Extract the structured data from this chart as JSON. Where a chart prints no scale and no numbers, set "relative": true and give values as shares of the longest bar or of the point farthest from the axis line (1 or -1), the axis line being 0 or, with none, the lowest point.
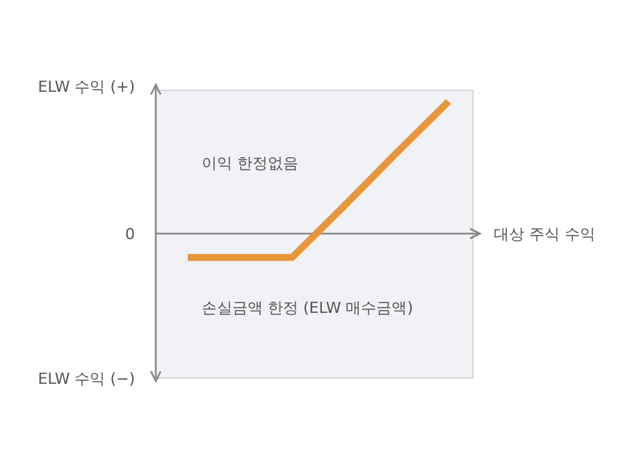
{
  "chart_data": {
    "type": "line",
    "relative": true,
    "categories": [
      null,
      null,
      null,
      null,
      null,
      null
    ],
    "values": [
      -0.18,
      -0.18,
      -0.18,
      0.21,
      0.61,
      1
    ],
    "color": "#e8963a",
    "xlabel": "대상 주식 수익",
    "annotations": [
      "ELW 수익 (+)",
      "0",
      "ELW 수익 (−)",
      "이익 한정없음",
      "손실금액 한정 (ELW 매수금액)"
    ]
  }
}
